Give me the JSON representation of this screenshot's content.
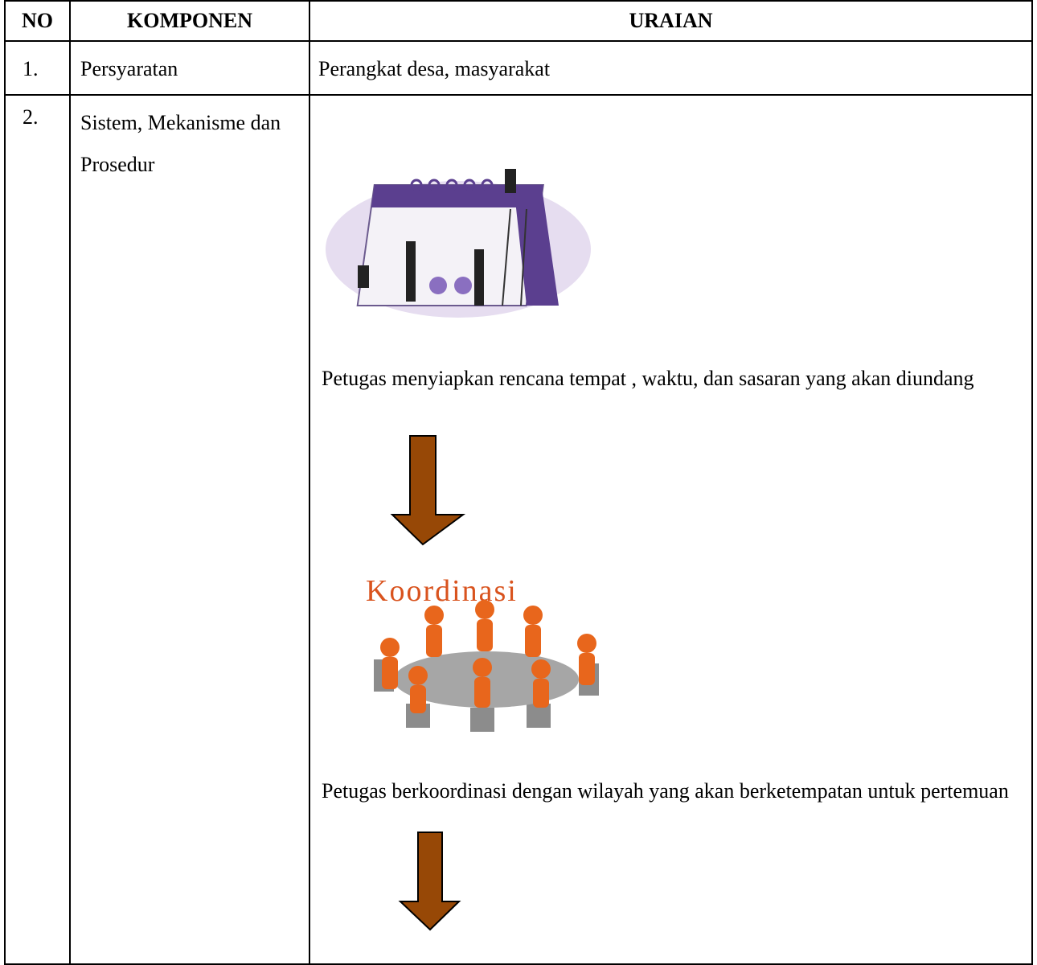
{
  "table": {
    "header": [
      "NO",
      "KOMPONEN",
      "URAIAN"
    ],
    "rows": [
      {
        "no": "1.",
        "komponen": "Persyaratan",
        "uraian": "Perangkat desa, masyarakat"
      },
      {
        "no": "2.",
        "komponen": "Sistem, Mekanisme dan Prosedur",
        "steps": [
          {
            "text": "Petugas menyiapkan  rencana tempat , waktu, dan sasaran yang akan diundang"
          },
          {
            "image_caption": "Koordinasi",
            "text": "Petugas berkoordinasi dengan wilayah yang akan berketempatan untuk pertemuan"
          }
        ]
      }
    ]
  }
}
